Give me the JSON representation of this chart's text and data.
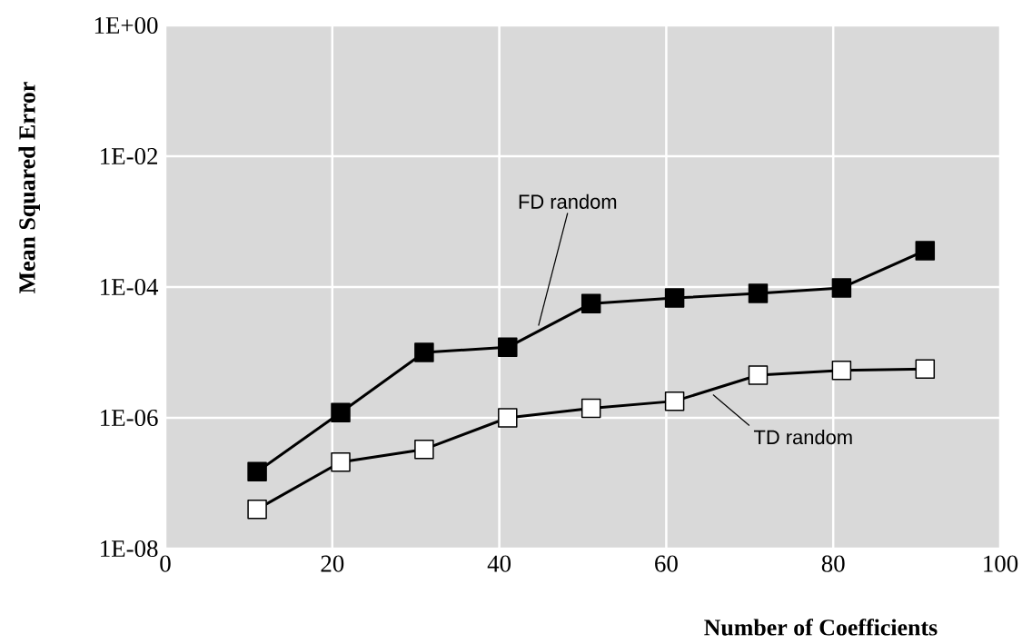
{
  "chart_data": {
    "type": "line",
    "xlabel": "Number of Coefficients",
    "ylabel": "Mean Squared Error",
    "x": [
      11,
      21,
      31,
      41,
      51,
      61,
      71,
      81,
      91
    ],
    "series": [
      {
        "name": "FD random",
        "color": "#000000",
        "values": [
          1.5e-07,
          1.2e-06,
          1e-05,
          1.2e-05,
          5.6e-05,
          6.8e-05,
          8e-05,
          9.7e-05,
          0.00036
        ]
      },
      {
        "name": "TD random",
        "color": "#ffffff",
        "values": [
          4e-08,
          2.1e-07,
          3.3e-07,
          1e-06,
          1.4e-06,
          1.8e-06,
          4.5e-06,
          5.3e-06,
          5.6e-06
        ]
      }
    ],
    "log": "y",
    "grid": true,
    "marker": "square",
    "line_style": "solid",
    "legend": false,
    "xlim": [
      0,
      100
    ],
    "xticks": [
      0,
      20,
      40,
      60,
      80,
      100
    ],
    "ylim": [
      1e-08,
      1
    ],
    "yticks": [
      {
        "value": 1e-08,
        "label": "1E-08"
      },
      {
        "value": 1e-06,
        "label": "1E-06"
      },
      {
        "value": 0.0001,
        "label": "1E-04"
      },
      {
        "value": 0.01,
        "label": "1E-02"
      },
      {
        "value": 1,
        "label": "1E+00"
      }
    ]
  }
}
